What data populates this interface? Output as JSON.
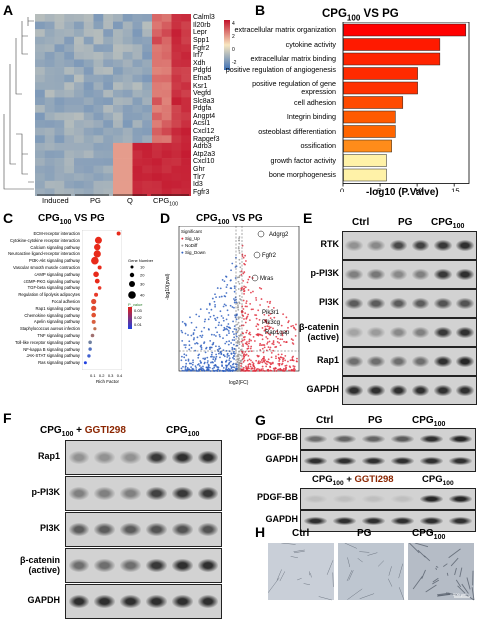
{
  "panels": {
    "A": "A",
    "B": "B",
    "C": "C",
    "D": "D",
    "E": "E",
    "F": "F",
    "G": "G",
    "H": "H"
  },
  "panelA": {
    "genes": [
      "Calml3",
      "Il20rb",
      "Lepr",
      "Spp1",
      "Fgfr2",
      "Irf7",
      "Xdh",
      "Pdgfd",
      "Efna5",
      "Ksr1",
      "Vegfd",
      "Slc8a3",
      "Pdgfa",
      "Angpt4",
      "Acsl1",
      "Cxcl12",
      "Rapgef3",
      "Adrb3",
      "Atp2a3",
      "Cxcl10",
      "Ghr",
      "Tlr7",
      "Id3",
      "Fgfr3"
    ],
    "groups": [
      "Induced",
      "PG",
      "Q",
      "CPG"
    ],
    "group_sub": "100",
    "scale_ticks": [
      "4",
      "2",
      "0",
      "-2"
    ]
  },
  "panelB": {
    "title": "CPG",
    "title_sub": "100",
    "title_rest": " VS PG",
    "xlabel": "-log10 (P.Valve)",
    "xticks": [
      "0",
      "5",
      "10",
      "15"
    ],
    "colors": [
      "#ff0000",
      "#ff1a00",
      "#ff2400",
      "#ff2a00",
      "#ff3000",
      "#ff4a00",
      "#ff5a00",
      "#ff6500",
      "#ff8c1a",
      "#fff2a8",
      "#fff2a8"
    ]
  },
  "chart_data": {
    "type": "bar",
    "title": "CPG100 VS PG",
    "xlabel": "-log10 (P.Valve)",
    "categories": [
      "extracellular matrix organization",
      "cytokine activity",
      "extracellular matrix binding",
      "positive regulation of angiogenesis",
      "positive regulation of gene expression",
      "cell adhesion",
      "Integrin binding",
      "osteoblast differentiation",
      "ossification",
      "growth factor activity",
      "bone morphogenesis"
    ],
    "values": [
      16.5,
      13,
      13,
      10,
      10,
      8,
      7,
      7,
      6.5,
      5.8,
      5.8
    ],
    "xlim": [
      0,
      17
    ]
  },
  "panelC": {
    "title": "CPG",
    "title_sub": "100",
    "title_rest": " VS PG",
    "xlabel": "Rich Factor",
    "xticks": [
      "0.1",
      "0.2",
      "0.3",
      "0.4"
    ],
    "pathways": [
      "ECM-receptor interaction",
      "Cytokine-cytokine receptor interaction",
      "Calcium signaling pathway",
      "Neuroactive ligand-receptor interaction",
      "PI3K-Akt signaling pathway",
      "Vascular smooth muscle contraction",
      "cAMP signaling pathway",
      "cGMP-PKG signaling pathway",
      "TGF-beta signaling pathway",
      "Regulation of lipolysis adipocytes",
      "Focal adhesion",
      "Rap1 signaling pathway",
      "Chemokine signaling pathway",
      "Apelin signaling pathway",
      "Staphylococcus aureus infection",
      "TNF signaling pathway",
      "Toll-like receptor signaling pathway",
      "NF-kappa B signaling pathway",
      "JAK-STAT signaling pathway",
      "Ras signaling pathway"
    ],
    "legend_size_title": "Gene Number",
    "legend_sizes": [
      "10",
      "20",
      "30",
      "40"
    ],
    "legend_p_title": "P_value",
    "legend_p": [
      "0.03",
      "0.02",
      "0.01"
    ]
  },
  "panelD": {
    "title": "CPG",
    "title_sub": "100",
    "title_rest": " VS PG",
    "xlabel": "log2(FC)",
    "ylabel": "-log10(pval)",
    "legend_title": "Significant",
    "legend": [
      "Sig_Up",
      "NoDiff",
      "Sig_Down"
    ],
    "genes": [
      "Adgrg2",
      "Fgfr2",
      "Mras",
      "Pik3r1",
      "Pik3cg",
      "Rap1gap"
    ],
    "xticks": [
      "-15",
      "-10",
      "-5",
      "0",
      "5",
      "10",
      "15"
    ]
  },
  "panelE": {
    "headers": [
      "Ctrl",
      "PG",
      "CPG"
    ],
    "header_sub": "100",
    "rows": [
      "RTK",
      "p-PI3K",
      "PI3K",
      "β-catenin",
      "Rap1",
      "GAPDH"
    ],
    "row_extra": "(active)"
  },
  "panelF": {
    "header_left": "CPG",
    "header_left_sub": "100",
    "header_left_plus": " + ",
    "header_left_drug": "GGTI298",
    "header_right": "CPG",
    "header_right_sub": "100",
    "rows": [
      "Rap1",
      "p-PI3K",
      "PI3K",
      "β-catenin",
      "GAPDH"
    ],
    "row_extra": "(active)"
  },
  "panelG": {
    "headers1": [
      "Ctrl",
      "PG",
      "CPG"
    ],
    "header_sub": "100",
    "rows": [
      "PDGF-BB",
      "GAPDH"
    ],
    "header2_left": "CPG",
    "header2_left_plus": " + ",
    "header2_left_drug": "GGTI298",
    "header2_right": "CPG"
  },
  "panelH": {
    "headers": [
      "Ctrl",
      "PG",
      "CPG"
    ],
    "header_sub": "100",
    "scale": "500 μm"
  }
}
